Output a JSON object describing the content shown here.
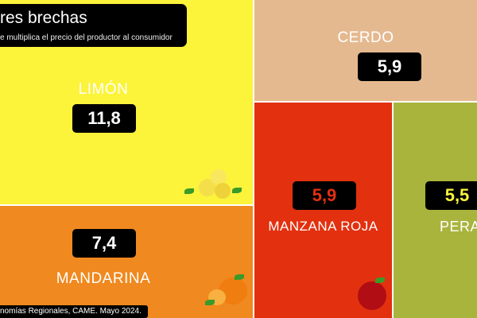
{
  "title": "res brechas",
  "subtitle": "e multiplica el precio del productor al consumidor",
  "source": "nomías Regionales, CAME. Mayo 2024.",
  "colors": {
    "limon": "#fcf33b",
    "mandarina": "#f0891f",
    "cerdo": "#e5b98f",
    "manzana": "#e3300f",
    "pera": "#a9b43d"
  },
  "items": [
    {
      "label": "LIMÓN",
      "value": "11,8",
      "icon": "lemon-icon"
    },
    {
      "label": "MANDARINA",
      "value": "7,4",
      "icon": "mandarin-icon"
    },
    {
      "label": "CERDO",
      "value": "5,9"
    },
    {
      "label": "MANZANA ROJA",
      "value": "5,9",
      "icon": "apple-icon"
    },
    {
      "label": "PERA",
      "value": "5,5"
    }
  ]
}
